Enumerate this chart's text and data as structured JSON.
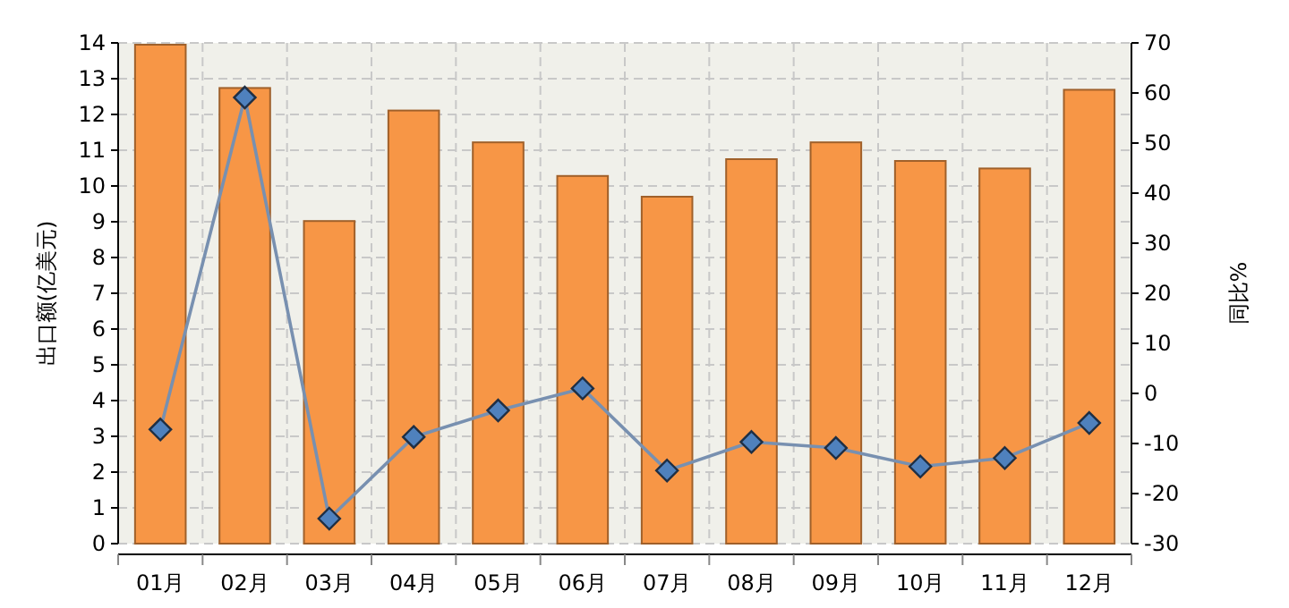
{
  "chart_data": {
    "type": "bar",
    "categories": [
      "01月",
      "02月",
      "03月",
      "04月",
      "05月",
      "06月",
      "07月",
      "08月",
      "09月",
      "10月",
      "11月",
      "12月"
    ],
    "ylabel": "出口额(亿美元)",
    "y2label": "同比%",
    "ylim": [
      0,
      14
    ],
    "yticks": [
      0,
      1,
      2,
      3,
      4,
      5,
      6,
      7,
      8,
      9,
      10,
      11,
      12,
      13,
      14
    ],
    "y2lim": [
      -30,
      70
    ],
    "y2ticks": [
      -30,
      -20,
      -10,
      0,
      10,
      20,
      30,
      40,
      50,
      60,
      70
    ],
    "grid": true,
    "series": [
      {
        "color": "#f79646",
        "values": [
          13.95,
          12.74,
          9.02,
          12.11,
          11.22,
          10.28,
          9.7,
          10.75,
          11.22,
          10.7,
          10.49,
          12.69
        ]
      },
      {
        "type": "line",
        "axis": "y2",
        "color": "#7890b0",
        "marker": "diamond",
        "line_style": "solid",
        "values": [
          -7.2,
          59.1,
          -25,
          -8.7,
          -3.4,
          1,
          -15.4,
          -9.7,
          -10.9,
          -14.6,
          -12.9,
          -5.9
        ]
      }
    ]
  }
}
